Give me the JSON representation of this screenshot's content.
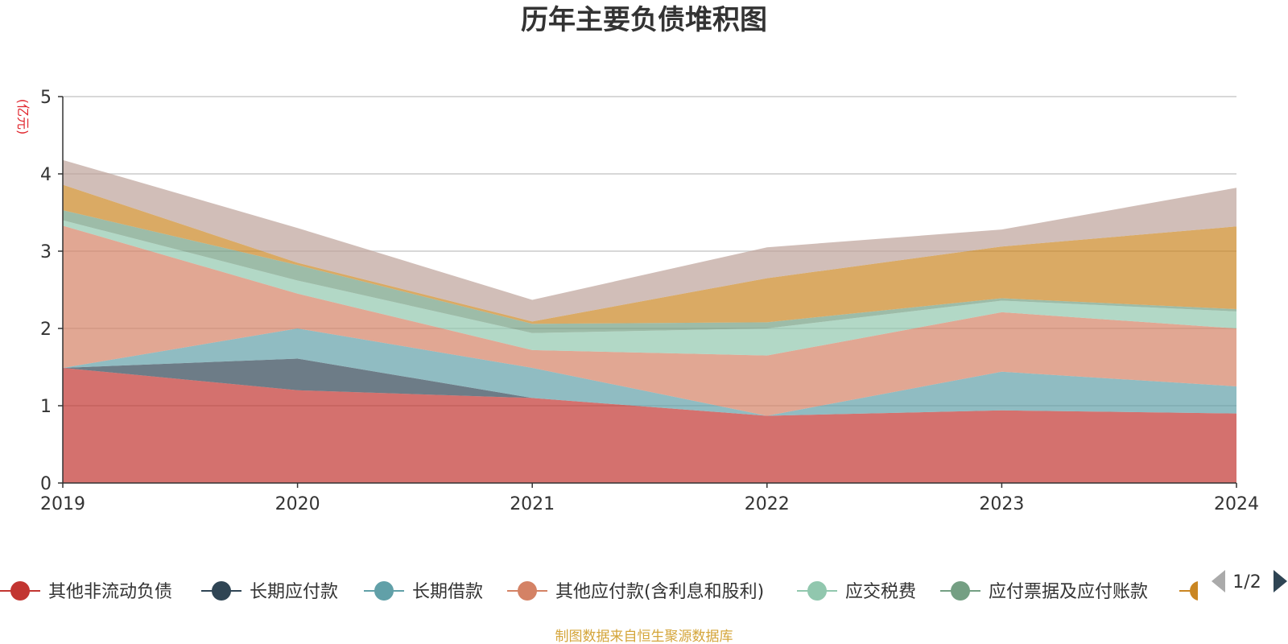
{
  "chart_data": {
    "type": "area",
    "stacked": true,
    "title": "历年主要负债堆积图",
    "unit_label": "(亿元)",
    "x": [
      "2019",
      "2020",
      "2021",
      "2022",
      "2023",
      "2024"
    ],
    "ylim": [
      0,
      5
    ],
    "y_ticks": [
      "0",
      "1",
      "2",
      "3",
      "4",
      "5"
    ],
    "grid": true,
    "series": [
      {
        "name": "其他非流动负债",
        "color": "#c23531",
        "values": [
          1.49,
          1.2,
          1.1,
          0.87,
          0.94,
          0.9
        ]
      },
      {
        "name": "长期应付款",
        "color": "#2f4554",
        "values": [
          0.0,
          0.41,
          0.0,
          0.0,
          0.0,
          0.0
        ]
      },
      {
        "name": "长期借款",
        "color": "#61a0a8",
        "values": [
          0.0,
          0.39,
          0.39,
          0.0,
          0.5,
          0.35
        ]
      },
      {
        "name": "其他应付款(含利息和股利)",
        "color": "#d48265",
        "values": [
          1.84,
          0.45,
          0.23,
          0.78,
          0.77,
          0.75
        ]
      },
      {
        "name": "应交税费",
        "color": "#91c7ae",
        "values": [
          0.07,
          0.17,
          0.22,
          0.35,
          0.15,
          0.22
        ]
      },
      {
        "name": "应付票据及应付账款",
        "color": "#749f83",
        "values": [
          0.13,
          0.2,
          0.12,
          0.08,
          0.03,
          0.03
        ]
      },
      {
        "name": "",
        "color": "#ca8622",
        "values": [
          0.33,
          0.03,
          0.03,
          0.57,
          0.67,
          1.07
        ]
      },
      {
        "name": "",
        "color": "#bda29a",
        "values": [
          0.32,
          0.45,
          0.28,
          0.4,
          0.22,
          0.5
        ]
      }
    ],
    "legend": {
      "position": "bottom",
      "page": "1/2"
    },
    "source": "制图数据来自恒生聚源数据库"
  }
}
